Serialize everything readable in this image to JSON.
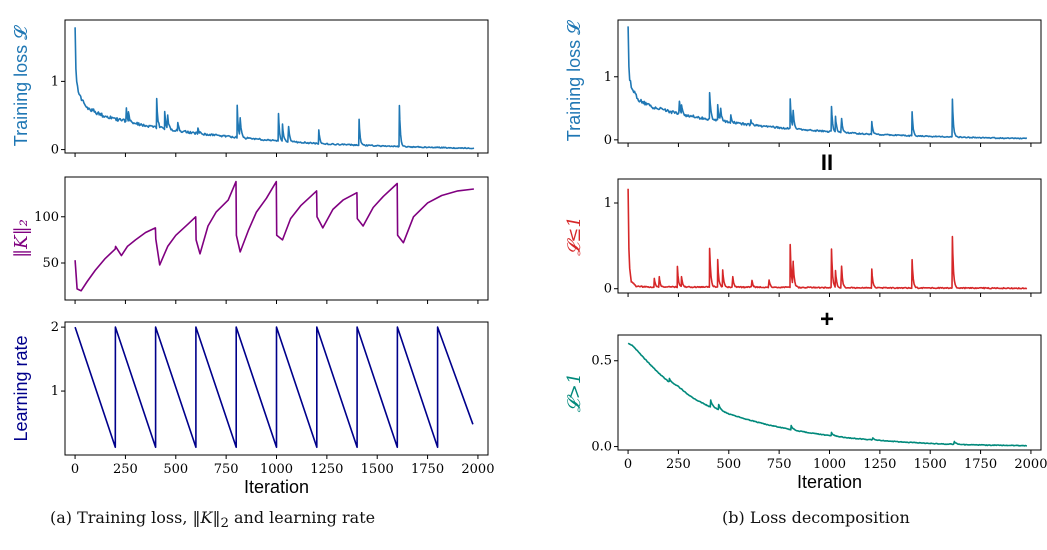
{
  "captions": {
    "a": {
      "prefix": "(a) Training loss, ",
      "symbol": "‖K‖",
      "sub": "2",
      "suffix": " and learning rate"
    },
    "b": "(b) Loss decomposition"
  },
  "operators": {
    "equals": "II",
    "plus": "+"
  },
  "chart_data": [
    {
      "id": "a-loss",
      "type": "line",
      "ylabel": "Training loss 𝓛",
      "ylabel_color": "#1f77b4",
      "color": "#1f77b4",
      "xlim": [
        -50,
        2050
      ],
      "ylim": [
        -0.05,
        1.9
      ],
      "yticks": [
        0,
        1
      ],
      "yticklabels": [
        "0",
        "1"
      ],
      "xticklabels_visible": false,
      "base": {
        "type": "decay",
        "x": [
          0,
          5,
          20,
          60,
          120,
          200,
          300,
          400,
          500,
          600,
          800,
          1000,
          1200,
          1400,
          1600,
          1800,
          1980
        ],
        "y": [
          1.85,
          1.05,
          0.78,
          0.62,
          0.52,
          0.45,
          0.38,
          0.33,
          0.28,
          0.24,
          0.18,
          0.13,
          0.09,
          0.065,
          0.045,
          0.03,
          0.02
        ]
      },
      "spikes": [
        [
          255,
          0.2
        ],
        [
          265,
          0.15
        ],
        [
          405,
          0.42
        ],
        [
          445,
          0.25
        ],
        [
          460,
          0.2
        ],
        [
          510,
          0.12
        ],
        [
          610,
          0.08
        ],
        [
          805,
          0.47
        ],
        [
          820,
          0.28
        ],
        [
          1010,
          0.4
        ],
        [
          1030,
          0.25
        ],
        [
          1060,
          0.22
        ],
        [
          1210,
          0.2
        ],
        [
          1410,
          0.38
        ],
        [
          1610,
          0.6
        ]
      ]
    },
    {
      "id": "a-knorm",
      "type": "line",
      "ylabel": "‖K‖₂",
      "ylabel_color": "#800080",
      "color": "#800080",
      "xlim": [
        -50,
        2050
      ],
      "ylim": [
        10,
        143
      ],
      "yticks": [
        50,
        100
      ],
      "yticklabels": [
        "50",
        "100"
      ],
      "xticklabels_visible": false,
      "x": [
        0,
        10,
        30,
        60,
        100,
        150,
        199,
        201,
        230,
        260,
        300,
        350,
        399,
        401,
        420,
        460,
        500,
        560,
        599,
        601,
        620,
        660,
        700,
        760,
        799,
        801,
        820,
        860,
        900,
        950,
        999,
        1001,
        1030,
        1070,
        1120,
        1170,
        1199,
        1201,
        1230,
        1280,
        1330,
        1399,
        1401,
        1430,
        1480,
        1530,
        1599,
        1601,
        1630,
        1680,
        1750,
        1820,
        1900,
        1980
      ],
      "y": [
        53,
        22,
        20,
        30,
        42,
        55,
        65,
        68,
        58,
        68,
        75,
        83,
        88,
        76,
        48,
        68,
        80,
        92,
        100,
        75,
        60,
        90,
        105,
        118,
        138,
        80,
        62,
        85,
        105,
        120,
        138,
        80,
        75,
        98,
        112,
        122,
        128,
        100,
        88,
        108,
        118,
        126,
        98,
        90,
        110,
        122,
        136,
        80,
        72,
        100,
        115,
        123,
        128,
        130
      ]
    },
    {
      "id": "a-lr",
      "type": "line",
      "ylabel": "Learning rate",
      "ylabel_color": "#00008b",
      "color": "#00008b",
      "xlim": [
        -50,
        2050
      ],
      "ylim": [
        0.0,
        2.08
      ],
      "yticks": [
        1,
        2
      ],
      "yticklabels": [
        "1",
        "2"
      ],
      "xticks": [
        0,
        250,
        500,
        750,
        1000,
        1250,
        1500,
        1750,
        2000
      ],
      "xticklabels": [
        "0",
        "250",
        "500",
        "750",
        "1000",
        "1250",
        "1500",
        "1750",
        "2000"
      ],
      "xlabel": "Iteration",
      "x": [
        0,
        199.9,
        200,
        399.9,
        400,
        599.9,
        600,
        799.9,
        800,
        999.9,
        1000,
        1199.9,
        1200,
        1399.9,
        1400,
        1599.9,
        1600,
        1799.9,
        1800,
        1975
      ],
      "y": [
        2.0,
        0.12,
        2.0,
        0.12,
        2.0,
        0.12,
        2.0,
        0.12,
        2.0,
        0.12,
        2.0,
        0.12,
        2.0,
        0.12,
        2.0,
        0.12,
        2.0,
        0.12,
        2.0,
        0.48
      ]
    },
    {
      "id": "b-loss",
      "type": "line",
      "ylabel": "Training loss 𝓛",
      "ylabel_color": "#1f77b4",
      "color": "#1f77b4",
      "xlim": [
        -50,
        2050
      ],
      "ylim": [
        -0.05,
        1.9
      ],
      "yticks": [
        0,
        1
      ],
      "yticklabels": [
        "0",
        "1"
      ],
      "xticklabels_visible": false,
      "base": {
        "type": "decay",
        "x": [
          0,
          5,
          20,
          60,
          120,
          200,
          300,
          400,
          500,
          600,
          800,
          1000,
          1200,
          1400,
          1600,
          1800,
          1980
        ],
        "y": [
          1.85,
          1.05,
          0.78,
          0.62,
          0.52,
          0.45,
          0.38,
          0.33,
          0.28,
          0.24,
          0.18,
          0.13,
          0.09,
          0.065,
          0.045,
          0.03,
          0.02
        ]
      },
      "spikes": [
        [
          255,
          0.2
        ],
        [
          265,
          0.15
        ],
        [
          405,
          0.42
        ],
        [
          445,
          0.25
        ],
        [
          460,
          0.2
        ],
        [
          510,
          0.12
        ],
        [
          610,
          0.08
        ],
        [
          805,
          0.47
        ],
        [
          820,
          0.28
        ],
        [
          1010,
          0.4
        ],
        [
          1030,
          0.25
        ],
        [
          1060,
          0.22
        ],
        [
          1210,
          0.2
        ],
        [
          1410,
          0.38
        ],
        [
          1610,
          0.6
        ]
      ]
    },
    {
      "id": "b-le1",
      "type": "line",
      "ylabel": "𝓛≤1",
      "ylabel_color": "#d62728",
      "color": "#d62728",
      "xlim": [
        -50,
        2050
      ],
      "ylim": [
        -0.05,
        1.28
      ],
      "yticks": [
        0,
        1
      ],
      "yticklabels": [
        "0",
        "1"
      ],
      "xticklabels_visible": false,
      "base": {
        "type": "decay",
        "x": [
          0,
          5,
          15,
          40,
          100,
          200,
          400,
          800,
          1200,
          1600,
          1980
        ],
        "y": [
          1.22,
          0.3,
          0.08,
          0.03,
          0.02,
          0.02,
          0.02,
          0.015,
          0.01,
          0.008,
          0.005
        ]
      },
      "spikes": [
        [
          130,
          0.1
        ],
        [
          155,
          0.12
        ],
        [
          245,
          0.24
        ],
        [
          265,
          0.12
        ],
        [
          405,
          0.45
        ],
        [
          445,
          0.32
        ],
        [
          470,
          0.2
        ],
        [
          520,
          0.12
        ],
        [
          615,
          0.08
        ],
        [
          700,
          0.08
        ],
        [
          805,
          0.5
        ],
        [
          820,
          0.28
        ],
        [
          1010,
          0.45
        ],
        [
          1030,
          0.2
        ],
        [
          1060,
          0.25
        ],
        [
          1210,
          0.22
        ],
        [
          1410,
          0.33
        ],
        [
          1610,
          0.6
        ]
      ]
    },
    {
      "id": "b-gt1",
      "type": "line",
      "ylabel": "𝓛>1",
      "ylabel_color": "#00897b",
      "color": "#00897b",
      "xlim": [
        -50,
        2050
      ],
      "ylim": [
        -0.02,
        0.65
      ],
      "yticks": [
        0.0,
        0.5
      ],
      "yticklabels": [
        "0.0",
        "0.5"
      ],
      "xticks": [
        0,
        250,
        500,
        750,
        1000,
        1250,
        1500,
        1750,
        2000
      ],
      "xticklabels": [
        "0",
        "250",
        "500",
        "750",
        "1000",
        "1250",
        "1500",
        "1750",
        "2000"
      ],
      "xlabel": "Iteration",
      "base": {
        "type": "smooth",
        "x": [
          0,
          20,
          60,
          100,
          150,
          200,
          250,
          300,
          350,
          400,
          450,
          500,
          600,
          700,
          800,
          900,
          1000,
          1100,
          1200,
          1300,
          1400,
          1500,
          1600,
          1700,
          1800,
          1900,
          1980
        ],
        "y": [
          0.6,
          0.59,
          0.54,
          0.49,
          0.43,
          0.38,
          0.35,
          0.3,
          0.265,
          0.235,
          0.215,
          0.19,
          0.155,
          0.125,
          0.1,
          0.08,
          0.064,
          0.05,
          0.04,
          0.031,
          0.024,
          0.018,
          0.014,
          0.01,
          0.008,
          0.006,
          0.005
        ]
      },
      "spikes": [
        [
          205,
          0.02
        ],
        [
          410,
          0.04
        ],
        [
          450,
          0.03
        ],
        [
          810,
          0.025
        ],
        [
          1010,
          0.02
        ],
        [
          1215,
          0.012
        ],
        [
          1620,
          0.015
        ]
      ]
    }
  ]
}
